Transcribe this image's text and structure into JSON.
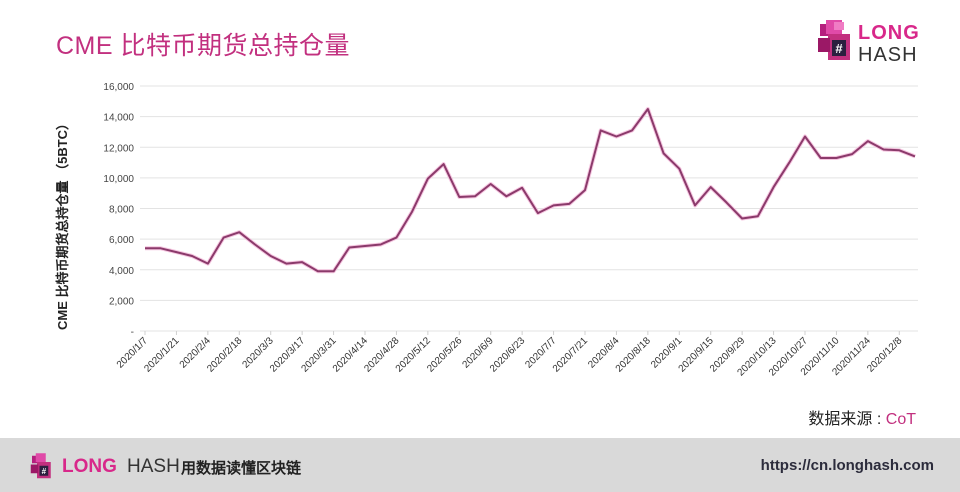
{
  "header": {
    "title": "CME 比特币期货总持仓量",
    "logo_top": {
      "line1": "LONG",
      "line2": "HASH"
    }
  },
  "source": {
    "label": "数据来源 : ",
    "value": "CoT"
  },
  "footer": {
    "brand_long": "LONG",
    "brand_hash": "HASH",
    "slogan": "用数据读懂区块链",
    "url": "https://cn.longhash.com"
  },
  "colors": {
    "accent": "#c2307f",
    "line": "#8b3a6b",
    "line_glow": "#f5c6e0",
    "grid": "#e3e3e3",
    "footer_bg": "#d9d9d9"
  },
  "chart_data": {
    "type": "line",
    "title": "CME 比特币期货总持仓量",
    "xlabel": "",
    "ylabel": "CME 比特币期货总持仓量 （5BTC）",
    "ylim": [
      0,
      16000
    ],
    "yticks": [
      0,
      2000,
      4000,
      6000,
      8000,
      10000,
      12000,
      14000,
      16000
    ],
    "ytick_labels": [
      "-",
      "2,000",
      "4,000",
      "6,000",
      "8,000",
      "10,000",
      "12,000",
      "14,000",
      "16,000"
    ],
    "grid": true,
    "legend": null,
    "xtick_labels": [
      "2020/1/7",
      "2020/1/21",
      "2020/2/4",
      "2020/2/18",
      "2020/3/3",
      "2020/3/17",
      "2020/3/31",
      "2020/4/14",
      "2020/4/28",
      "2020/5/12",
      "2020/5/26",
      "2020/6/9",
      "2020/6/23",
      "2020/7/7",
      "2020/7/21",
      "2020/8/4",
      "2020/8/18",
      "2020/9/1",
      "2020/9/15",
      "2020/9/29",
      "2020/10/13",
      "2020/10/27",
      "2020/11/10",
      "2020/11/24",
      "2020/12/8"
    ],
    "x": [
      "2020/1/7",
      "2020/1/14",
      "2020/1/21",
      "2020/1/28",
      "2020/2/4",
      "2020/2/11",
      "2020/2/18",
      "2020/2/25",
      "2020/3/3",
      "2020/3/10",
      "2020/3/17",
      "2020/3/24",
      "2020/3/31",
      "2020/4/7",
      "2020/4/14",
      "2020/4/21",
      "2020/4/28",
      "2020/5/5",
      "2020/5/12",
      "2020/5/19",
      "2020/5/26",
      "2020/6/2",
      "2020/6/9",
      "2020/6/16",
      "2020/6/23",
      "2020/6/30",
      "2020/7/7",
      "2020/7/14",
      "2020/7/21",
      "2020/7/28",
      "2020/8/4",
      "2020/8/11",
      "2020/8/18",
      "2020/8/25",
      "2020/9/1",
      "2020/9/8",
      "2020/9/15",
      "2020/9/22",
      "2020/9/29",
      "2020/10/6",
      "2020/10/13",
      "2020/10/20",
      "2020/10/27",
      "2020/11/3",
      "2020/11/10",
      "2020/11/17",
      "2020/11/24",
      "2020/12/1",
      "2020/12/8",
      "2020/12/15"
    ],
    "series": [
      {
        "name": "CME 比特币期货总持仓量",
        "values": [
          5400,
          5400,
          5150,
          4900,
          4400,
          6100,
          6450,
          5650,
          4900,
          4400,
          4500,
          3900,
          3900,
          5450,
          5550,
          5650,
          6100,
          7800,
          9950,
          10900,
          8750,
          8800,
          9600,
          8800,
          9350,
          7700,
          8200,
          8300,
          9200,
          13100,
          12700,
          13100,
          14500,
          11600,
          10600,
          8200,
          9400,
          8400,
          7350,
          7500,
          9400,
          11000,
          12700,
          11300,
          11300,
          11550,
          12400,
          11850,
          11800,
          11400
        ]
      }
    ]
  }
}
